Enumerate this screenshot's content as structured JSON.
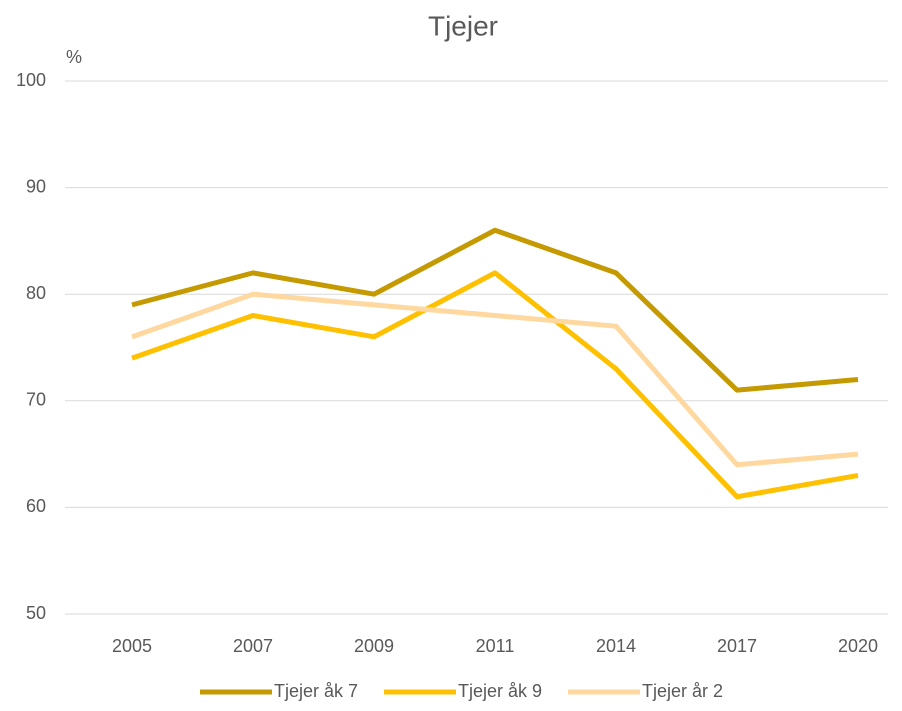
{
  "chart_data": {
    "type": "line",
    "title": "Tjejer",
    "y_label": "%",
    "categories": [
      "2005",
      "2007",
      "2009",
      "2011",
      "2014",
      "2017",
      "2020"
    ],
    "series": [
      {
        "name": "Tjejer åk 7",
        "color": "#c49a00",
        "values": [
          79,
          82,
          80,
          86,
          82,
          71,
          72
        ]
      },
      {
        "name": "Tjejer åk 9",
        "color": "#ffc000",
        "values": [
          74,
          78,
          76,
          82,
          73,
          61,
          63
        ]
      },
      {
        "name": "Tjejer år 2",
        "color": "#ffd8a0",
        "values": [
          76,
          80,
          79,
          78,
          77,
          64,
          65
        ]
      }
    ],
    "ylim": [
      50,
      100
    ],
    "yticks": [
      50,
      60,
      70,
      80,
      90,
      100
    ],
    "grid": true,
    "legend": "bottom"
  }
}
